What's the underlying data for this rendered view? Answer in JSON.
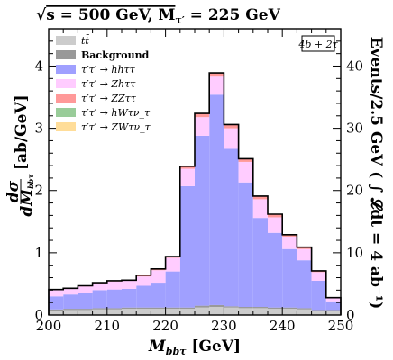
{
  "chart_data": {
    "type": "stacked-histogram",
    "title": "√s = 500 GeV, M_τ′ = 225 GeV",
    "title_parts": {
      "sqrt": "√",
      "s_label": "s = 500 GeV, M",
      "sub": "τ′",
      "rest": " = 225 GeV"
    },
    "xlabel": "M_bbτ [GeV]",
    "xlabel_parts": {
      "main": "M",
      "sub": "bbτ",
      "unit": " [GeV]"
    },
    "ylabel_left": "dσ/dM_bbτ [ab/GeV]",
    "ylabel_left_parts": {
      "num": "dσ",
      "den": "dM",
      "den_sub": "bbτ",
      "unit": "[ab/GeV]"
    },
    "ylabel_right": "Events/2.5 GeV ( ∫ 𝓛dt = 4 ab⁻¹)",
    "annotation": "4b + 2τ",
    "xlim": [
      200,
      250
    ],
    "ylim": [
      0,
      4.6
    ],
    "xticks": [
      "200",
      "210",
      "220",
      "230",
      "240",
      "250"
    ],
    "yticks_left": [
      "0",
      "1",
      "2",
      "3",
      "4"
    ],
    "yticks_right": [
      "0",
      "10",
      "20",
      "30",
      "40"
    ],
    "bin_edges": [
      200,
      202.5,
      205,
      207.5,
      210,
      212.5,
      215,
      217.5,
      220,
      222.5,
      225,
      227.5,
      230,
      232.5,
      235,
      237.5,
      240,
      242.5,
      245,
      247.5,
      250
    ],
    "legend": [
      {
        "label": "tt̄",
        "color": "#cccccc"
      },
      {
        "label": "Background",
        "color": "#999999"
      },
      {
        "label": "τ′τ′ → hhττ",
        "color": "#a0a0ff"
      },
      {
        "label": "τ′τ′ → Zhττ",
        "color": "#ffccff"
      },
      {
        "label": "τ′τ′ → ZZττ",
        "color": "#ff9999"
      },
      {
        "label": "τ′τ′ → hWτν_τ",
        "color": "#99cc99"
      },
      {
        "label": "τ′τ′ → ZWτν_τ",
        "color": "#ffdd99"
      }
    ],
    "series": [
      {
        "name": "tt̄",
        "color": "#cccccc",
        "values": [
          0.06,
          0.08,
          0.08,
          0.09,
          0.09,
          0.1,
          0.1,
          0.1,
          0.1,
          0.1,
          0.12,
          0.13,
          0.12,
          0.11,
          0.11,
          0.1,
          0.1,
          0.09,
          0.07,
          0.07
        ]
      },
      {
        "name": "Background",
        "color": "#999999",
        "values": [
          0.03,
          0.02,
          0.02,
          0.02,
          0.02,
          0.02,
          0.02,
          0.02,
          0.02,
          0.02,
          0.03,
          0.03,
          0.02,
          0.02,
          0.02,
          0.02,
          0.02,
          0.02,
          0.01,
          0.01
        ]
      },
      {
        "name": "τ′τ′ → hhττ",
        "color": "#a0a0ff",
        "values": [
          0.21,
          0.23,
          0.26,
          0.29,
          0.3,
          0.3,
          0.35,
          0.4,
          0.58,
          1.95,
          2.73,
          3.38,
          2.53,
          2.0,
          1.43,
          1.2,
          0.94,
          0.77,
          0.47,
          0.14
        ]
      },
      {
        "name": "τ′τ′ → Zhττ",
        "color": "#ffccff",
        "values": [
          0.1,
          0.09,
          0.1,
          0.11,
          0.13,
          0.13,
          0.15,
          0.2,
          0.22,
          0.28,
          0.3,
          0.29,
          0.33,
          0.33,
          0.3,
          0.25,
          0.2,
          0.18,
          0.14,
          0.05
        ]
      },
      {
        "name": "τ′τ′ → ZZττ",
        "color": "#ff9999",
        "values": [
          0.01,
          0.01,
          0.01,
          0.01,
          0.01,
          0.01,
          0.02,
          0.02,
          0.02,
          0.04,
          0.06,
          0.06,
          0.06,
          0.05,
          0.05,
          0.05,
          0.03,
          0.03,
          0.02,
          0.01
        ]
      },
      {
        "name": "τ′τ′ → hWτν_τ",
        "color": "#99cc99",
        "values": [
          0,
          0,
          0,
          0,
          0,
          0,
          0,
          0,
          0,
          0,
          0,
          0,
          0,
          0,
          0,
          0,
          0,
          0,
          0,
          0
        ]
      },
      {
        "name": "τ′τ′ → ZWτν_τ",
        "color": "#ffdd99",
        "values": [
          0,
          0,
          0,
          0,
          0,
          0,
          0,
          0,
          0,
          0,
          0,
          0,
          0,
          0,
          0,
          0,
          0,
          0,
          0,
          0
        ]
      }
    ]
  }
}
